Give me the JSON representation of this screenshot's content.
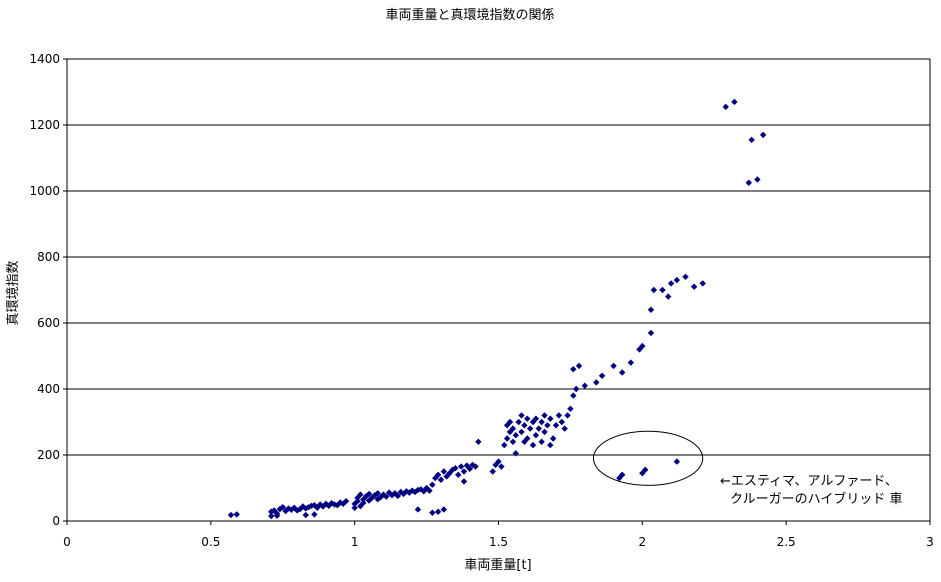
{
  "chart_data": {
    "type": "scatter",
    "title": "車両重量と真環境指数の関係",
    "xlabel": "車両重量[t]",
    "ylabel": "真環境指数",
    "xlim": [
      0,
      3
    ],
    "ylim": [
      0,
      1400
    ],
    "xticks": [
      0,
      0.5,
      1,
      1.5,
      2,
      2.5,
      3
    ],
    "xtick_labels": [
      "0",
      "0.5",
      "1",
      "1.5",
      "2",
      "2.5",
      "3"
    ],
    "yticks": [
      0,
      200,
      400,
      600,
      800,
      1000,
      1200,
      1400
    ],
    "ytick_labels": [
      "0",
      "200",
      "400",
      "600",
      "800",
      "1000",
      "1200",
      "1400"
    ],
    "grid": "horizontal",
    "legend": "none",
    "marker_color": "#000080",
    "marker": "diamond",
    "annotation": {
      "lines": [
        "←エスティマ、アルファード、",
        "クルーガーのハイブリッド 車"
      ],
      "ellipse_center": [
        2.02,
        190
      ],
      "ellipse_radii": [
        0.19,
        82
      ]
    },
    "series": [
      {
        "points": [
          [
            0.57,
            18
          ],
          [
            0.59,
            20
          ],
          [
            0.71,
            15
          ],
          [
            0.71,
            28
          ],
          [
            0.72,
            32
          ],
          [
            0.73,
            22
          ],
          [
            0.73,
            16
          ],
          [
            0.74,
            36
          ],
          [
            0.75,
            42
          ],
          [
            0.76,
            30
          ],
          [
            0.77,
            38
          ],
          [
            0.78,
            34
          ],
          [
            0.79,
            40
          ],
          [
            0.8,
            32
          ],
          [
            0.81,
            36
          ],
          [
            0.82,
            44
          ],
          [
            0.83,
            38
          ],
          [
            0.83,
            18
          ],
          [
            0.84,
            42
          ],
          [
            0.85,
            46
          ],
          [
            0.86,
            48
          ],
          [
            0.86,
            20
          ],
          [
            0.87,
            40
          ],
          [
            0.88,
            50
          ],
          [
            0.89,
            44
          ],
          [
            0.9,
            52
          ],
          [
            0.91,
            46
          ],
          [
            0.92,
            54
          ],
          [
            0.93,
            50
          ],
          [
            0.94,
            48
          ],
          [
            0.95,
            56
          ],
          [
            0.96,
            52
          ],
          [
            0.97,
            60
          ],
          [
            1.0,
            40
          ],
          [
            1.0,
            52
          ],
          [
            1.01,
            60
          ],
          [
            1.01,
            70
          ],
          [
            1.02,
            45
          ],
          [
            1.02,
            80
          ],
          [
            1.03,
            65
          ],
          [
            1.03,
            55
          ],
          [
            1.04,
            75
          ],
          [
            1.05,
            82
          ],
          [
            1.05,
            62
          ],
          [
            1.06,
            70
          ],
          [
            1.07,
            78
          ],
          [
            1.08,
            66
          ],
          [
            1.08,
            84
          ],
          [
            1.09,
            72
          ],
          [
            1.1,
            80
          ],
          [
            1.11,
            74
          ],
          [
            1.12,
            86
          ],
          [
            1.13,
            78
          ],
          [
            1.14,
            84
          ],
          [
            1.15,
            76
          ],
          [
            1.16,
            88
          ],
          [
            1.17,
            82
          ],
          [
            1.18,
            90
          ],
          [
            1.19,
            86
          ],
          [
            1.2,
            92
          ],
          [
            1.21,
            88
          ],
          [
            1.22,
            94
          ],
          [
            1.22,
            35
          ],
          [
            1.23,
            96
          ],
          [
            1.24,
            90
          ],
          [
            1.25,
            100
          ],
          [
            1.26,
            92
          ],
          [
            1.27,
            25
          ],
          [
            1.27,
            110
          ],
          [
            1.28,
            130
          ],
          [
            1.29,
            140
          ],
          [
            1.29,
            28
          ],
          [
            1.3,
            125
          ],
          [
            1.31,
            150
          ],
          [
            1.31,
            35
          ],
          [
            1.32,
            135
          ],
          [
            1.33,
            145
          ],
          [
            1.34,
            155
          ],
          [
            1.35,
            160
          ],
          [
            1.36,
            140
          ],
          [
            1.37,
            165
          ],
          [
            1.38,
            150
          ],
          [
            1.38,
            120
          ],
          [
            1.39,
            168
          ],
          [
            1.4,
            158
          ],
          [
            1.41,
            170
          ],
          [
            1.42,
            165
          ],
          [
            1.43,
            240
          ],
          [
            1.48,
            150
          ],
          [
            1.49,
            170
          ],
          [
            1.5,
            180
          ],
          [
            1.51,
            165
          ],
          [
            1.52,
            230
          ],
          [
            1.53,
            250
          ],
          [
            1.53,
            290
          ],
          [
            1.54,
            270
          ],
          [
            1.54,
            300
          ],
          [
            1.55,
            240
          ],
          [
            1.55,
            280
          ],
          [
            1.56,
            260
          ],
          [
            1.56,
            205
          ],
          [
            1.57,
            300
          ],
          [
            1.58,
            320
          ],
          [
            1.58,
            270
          ],
          [
            1.59,
            240
          ],
          [
            1.59,
            290
          ],
          [
            1.6,
            310
          ],
          [
            1.6,
            250
          ],
          [
            1.61,
            280
          ],
          [
            1.62,
            230
          ],
          [
            1.62,
            300
          ],
          [
            1.63,
            260
          ],
          [
            1.63,
            310
          ],
          [
            1.64,
            280
          ],
          [
            1.65,
            240
          ],
          [
            1.65,
            300
          ],
          [
            1.66,
            320
          ],
          [
            1.66,
            270
          ],
          [
            1.67,
            290
          ],
          [
            1.68,
            230
          ],
          [
            1.68,
            310
          ],
          [
            1.69,
            250
          ],
          [
            1.7,
            290
          ],
          [
            1.71,
            320
          ],
          [
            1.72,
            300
          ],
          [
            1.73,
            280
          ],
          [
            1.74,
            320
          ],
          [
            1.75,
            340
          ],
          [
            1.76,
            380
          ],
          [
            1.76,
            460
          ],
          [
            1.77,
            400
          ],
          [
            1.78,
            470
          ],
          [
            1.8,
            410
          ],
          [
            1.84,
            420
          ],
          [
            1.86,
            440
          ],
          [
            1.9,
            470
          ],
          [
            1.93,
            450
          ],
          [
            1.96,
            480
          ],
          [
            1.99,
            520
          ],
          [
            2.0,
            530
          ],
          [
            2.03,
            570
          ],
          [
            2.03,
            640
          ],
          [
            2.04,
            700
          ],
          [
            2.07,
            700
          ],
          [
            2.09,
            680
          ],
          [
            2.1,
            720
          ],
          [
            2.12,
            730
          ],
          [
            2.15,
            740
          ],
          [
            2.18,
            710
          ],
          [
            2.21,
            720
          ],
          [
            2.29,
            1255
          ],
          [
            2.32,
            1270
          ],
          [
            2.37,
            1025
          ],
          [
            2.38,
            1155
          ],
          [
            2.4,
            1035
          ],
          [
            2.42,
            1170
          ]
        ]
      },
      {
        "points": [
          [
            1.92,
            130
          ],
          [
            1.93,
            140
          ],
          [
            2.0,
            145
          ],
          [
            2.01,
            155
          ],
          [
            2.12,
            180
          ]
        ]
      }
    ]
  }
}
